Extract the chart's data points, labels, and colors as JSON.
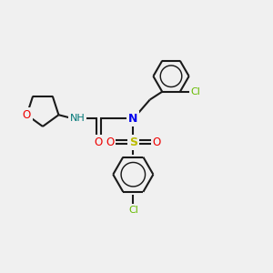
{
  "background_color": "#f0f0f0",
  "bond_color": "#1a1a1a",
  "N_color": "#0000ee",
  "O_color": "#ee0000",
  "S_color": "#bbbb00",
  "Cl_color": "#66bb00",
  "H_color": "#007777",
  "figsize": [
    3.0,
    3.0
  ],
  "dpi": 100,
  "xlim": [
    0,
    12
  ],
  "ylim": [
    0,
    12
  ]
}
